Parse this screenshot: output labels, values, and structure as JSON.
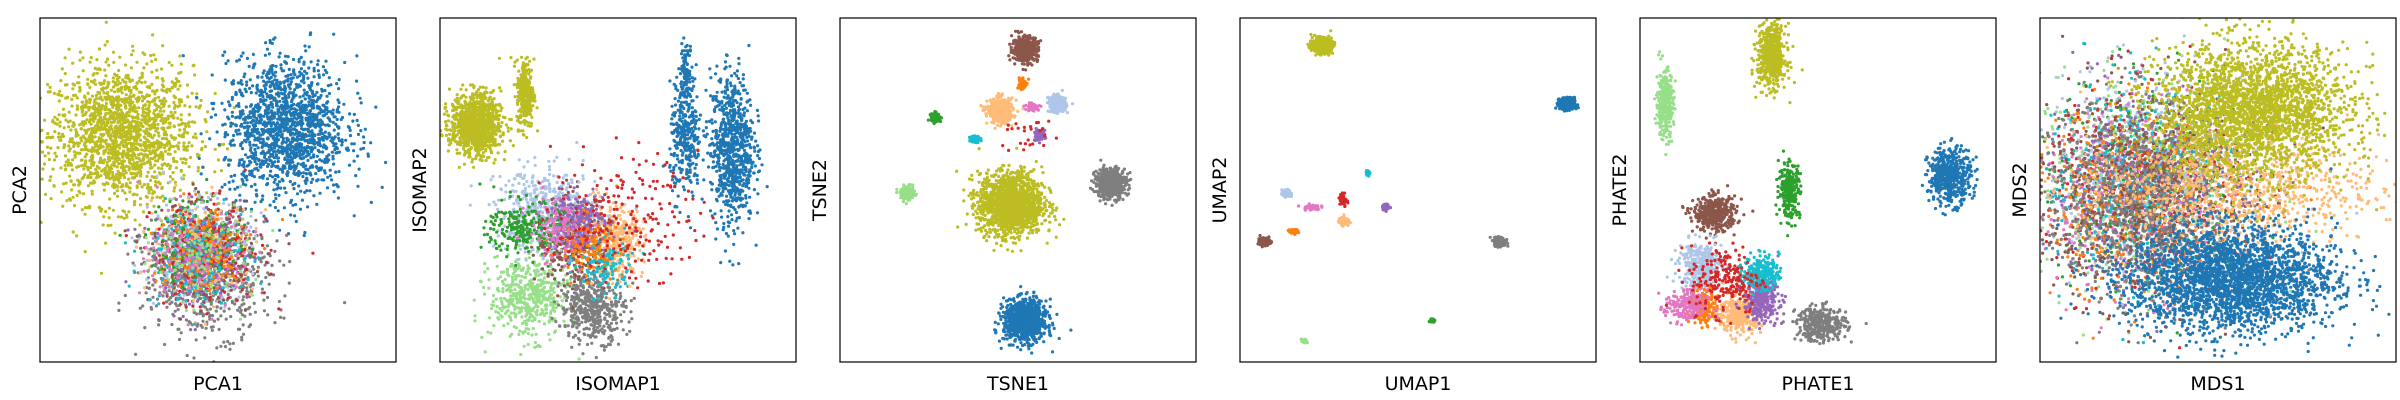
{
  "palette": {
    "blue": "#1f77b4",
    "orange": "#ff7f0e",
    "green": "#2ca02c",
    "red": "#d62728",
    "purple": "#9467bd",
    "brown": "#8c564b",
    "pink": "#e377c2",
    "gray": "#7f7f7f",
    "olive": "#bcbd22",
    "cyan": "#17becf",
    "light_blue": "#aec7e8",
    "light_orange": "#ffbb78",
    "light_green": "#98df8a"
  },
  "chart_data": [
    {
      "type": "scatter",
      "xlabel": "PCA1",
      "ylabel": "PCA2",
      "xlim": [
        0,
        10
      ],
      "ylim": [
        0,
        10
      ],
      "clusters": [
        {
          "color": "olive",
          "x": 2.3,
          "y": 6.6,
          "sx": 1.0,
          "sy": 1.0,
          "n": 1700
        },
        {
          "color": "blue",
          "x": 6.9,
          "y": 6.8,
          "sx": 0.85,
          "sy": 1.0,
          "n": 1500
        },
        {
          "color": "gray",
          "x": 4.7,
          "y": 2.5,
          "sx": 0.9,
          "sy": 0.85,
          "n": 700
        },
        {
          "color": "light_blue",
          "x": 4.4,
          "y": 3.4,
          "sx": 0.75,
          "sy": 0.7,
          "n": 350
        },
        {
          "color": "light_orange",
          "x": 4.6,
          "y": 3.3,
          "sx": 0.7,
          "sy": 0.65,
          "n": 300
        },
        {
          "color": "brown",
          "x": 4.5,
          "y": 3.2,
          "sx": 0.7,
          "sy": 0.7,
          "n": 250
        },
        {
          "color": "red",
          "x": 4.8,
          "y": 3.1,
          "sx": 0.8,
          "sy": 0.75,
          "n": 200
        },
        {
          "color": "green",
          "x": 4.4,
          "y": 3.5,
          "sx": 0.7,
          "sy": 0.7,
          "n": 150
        },
        {
          "color": "purple",
          "x": 4.6,
          "y": 3.0,
          "sx": 0.7,
          "sy": 0.7,
          "n": 150
        },
        {
          "color": "cyan",
          "x": 4.3,
          "y": 3.1,
          "sx": 0.7,
          "sy": 0.7,
          "n": 150
        },
        {
          "color": "orange",
          "x": 4.5,
          "y": 3.3,
          "sx": 0.7,
          "sy": 0.7,
          "n": 120
        },
        {
          "color": "pink",
          "x": 4.4,
          "y": 3.0,
          "sx": 0.7,
          "sy": 0.7,
          "n": 120
        },
        {
          "color": "light_green",
          "x": 4.6,
          "y": 3.2,
          "sx": 0.7,
          "sy": 0.7,
          "n": 100
        }
      ]
    },
    {
      "type": "scatter",
      "xlabel": "ISOMAP1",
      "ylabel": "ISOMAP2",
      "xlim": [
        0,
        10
      ],
      "ylim": [
        0,
        10
      ],
      "clusters": [
        {
          "color": "olive",
          "x": 1.0,
          "y": 6.9,
          "sx": 0.35,
          "sy": 0.45,
          "n": 1000
        },
        {
          "color": "olive",
          "x": 2.4,
          "y": 7.8,
          "sx": 0.12,
          "sy": 0.5,
          "n": 300
        },
        {
          "color": "blue",
          "x": 8.2,
          "y": 6.2,
          "sx": 0.3,
          "sy": 1.1,
          "n": 800
        },
        {
          "color": "blue",
          "x": 6.9,
          "y": 6.4,
          "sx": 0.22,
          "sy": 0.8,
          "n": 300
        },
        {
          "color": "blue",
          "x": 6.9,
          "y": 8.4,
          "sx": 0.1,
          "sy": 0.4,
          "n": 100
        },
        {
          "color": "light_green",
          "x": 2.5,
          "y": 1.9,
          "sx": 0.55,
          "sy": 0.6,
          "n": 500
        },
        {
          "color": "gray",
          "x": 4.3,
          "y": 1.6,
          "sx": 0.45,
          "sy": 0.5,
          "n": 450
        },
        {
          "color": "light_orange",
          "x": 4.9,
          "y": 3.5,
          "sx": 0.4,
          "sy": 0.5,
          "n": 400
        },
        {
          "color": "brown",
          "x": 3.7,
          "y": 3.6,
          "sx": 0.5,
          "sy": 0.6,
          "n": 400
        },
        {
          "color": "light_blue",
          "x": 3.0,
          "y": 4.4,
          "sx": 0.7,
          "sy": 0.6,
          "n": 450
        },
        {
          "color": "purple",
          "x": 3.8,
          "y": 4.1,
          "sx": 0.4,
          "sy": 0.4,
          "n": 250
        },
        {
          "color": "green",
          "x": 2.3,
          "y": 3.9,
          "sx": 0.5,
          "sy": 0.4,
          "n": 220
        },
        {
          "color": "cyan",
          "x": 4.6,
          "y": 2.8,
          "sx": 0.4,
          "sy": 0.4,
          "n": 120
        },
        {
          "color": "orange",
          "x": 4.2,
          "y": 3.4,
          "sx": 0.4,
          "sy": 0.4,
          "n": 120
        },
        {
          "color": "pink",
          "x": 3.3,
          "y": 3.8,
          "sx": 0.4,
          "sy": 0.5,
          "n": 120
        },
        {
          "color": "red",
          "x": 5.2,
          "y": 4.2,
          "sx": 1.0,
          "sy": 0.9,
          "n": 200
        }
      ]
    },
    {
      "type": "scatter",
      "xlabel": "TSNE1",
      "ylabel": "TSNE2",
      "xlim": [
        0,
        10
      ],
      "ylim": [
        0,
        10
      ],
      "clusters": [
        {
          "color": "olive",
          "x": 4.8,
          "y": 4.6,
          "sx": 0.45,
          "sy": 0.45,
          "n": 1600
        },
        {
          "color": "blue",
          "x": 5.2,
          "y": 1.2,
          "sx": 0.3,
          "sy": 0.3,
          "n": 900
        },
        {
          "color": "gray",
          "x": 7.6,
          "y": 5.2,
          "sx": 0.22,
          "sy": 0.22,
          "n": 500
        },
        {
          "color": "brown",
          "x": 5.2,
          "y": 9.1,
          "sx": 0.18,
          "sy": 0.18,
          "n": 400
        },
        {
          "color": "light_orange",
          "x": 4.5,
          "y": 7.3,
          "sx": 0.18,
          "sy": 0.18,
          "n": 350
        },
        {
          "color": "light_blue",
          "x": 6.1,
          "y": 7.5,
          "sx": 0.12,
          "sy": 0.12,
          "n": 250
        },
        {
          "color": "light_green",
          "x": 1.9,
          "y": 4.9,
          "sx": 0.1,
          "sy": 0.1,
          "n": 150
        },
        {
          "color": "green",
          "x": 2.7,
          "y": 7.1,
          "sx": 0.07,
          "sy": 0.07,
          "n": 100
        },
        {
          "color": "purple",
          "x": 5.6,
          "y": 6.6,
          "sx": 0.08,
          "sy": 0.08,
          "n": 80
        },
        {
          "color": "cyan",
          "x": 3.8,
          "y": 6.5,
          "sx": 0.06,
          "sy": 0.06,
          "n": 60
        },
        {
          "color": "orange",
          "x": 5.1,
          "y": 8.1,
          "sx": 0.06,
          "sy": 0.1,
          "n": 60
        },
        {
          "color": "pink",
          "x": 5.4,
          "y": 7.4,
          "sx": 0.12,
          "sy": 0.06,
          "n": 50
        },
        {
          "color": "red",
          "x": 5.3,
          "y": 6.6,
          "sx": 0.4,
          "sy": 0.3,
          "n": 25
        }
      ]
    },
    {
      "type": "scatter",
      "xlabel": "UMAP1",
      "ylabel": "UMAP2",
      "xlim": [
        0,
        10
      ],
      "ylim": [
        0,
        10
      ],
      "clusters": [
        {
          "color": "olive",
          "x": 2.3,
          "y": 9.2,
          "sx": 0.13,
          "sy": 0.1,
          "n": 700
        },
        {
          "color": "blue",
          "x": 9.2,
          "y": 7.5,
          "sx": 0.1,
          "sy": 0.08,
          "n": 600
        },
        {
          "color": "gray",
          "x": 7.3,
          "y": 3.5,
          "sx": 0.08,
          "sy": 0.06,
          "n": 300
        },
        {
          "color": "brown",
          "x": 0.7,
          "y": 3.5,
          "sx": 0.07,
          "sy": 0.05,
          "n": 200
        },
        {
          "color": "light_orange",
          "x": 2.9,
          "y": 4.1,
          "sx": 0.06,
          "sy": 0.05,
          "n": 150
        },
        {
          "color": "light_blue",
          "x": 1.3,
          "y": 4.9,
          "sx": 0.06,
          "sy": 0.05,
          "n": 120
        },
        {
          "color": "purple",
          "x": 4.1,
          "y": 4.5,
          "sx": 0.05,
          "sy": 0.04,
          "n": 80
        },
        {
          "color": "orange",
          "x": 1.5,
          "y": 3.8,
          "sx": 0.06,
          "sy": 0.03,
          "n": 60
        },
        {
          "color": "pink",
          "x": 2.0,
          "y": 4.5,
          "sx": 0.12,
          "sy": 0.04,
          "n": 60
        },
        {
          "color": "red",
          "x": 2.9,
          "y": 4.7,
          "sx": 0.05,
          "sy": 0.12,
          "n": 40
        },
        {
          "color": "cyan",
          "x": 3.6,
          "y": 5.5,
          "sx": 0.03,
          "sy": 0.03,
          "n": 40
        },
        {
          "color": "light_green",
          "x": 1.8,
          "y": 0.6,
          "sx": 0.04,
          "sy": 0.03,
          "n": 40
        },
        {
          "color": "green",
          "x": 5.4,
          "y": 1.2,
          "sx": 0.03,
          "sy": 0.03,
          "n": 30
        }
      ]
    },
    {
      "type": "scatter",
      "xlabel": "PHATE1",
      "ylabel": "PHATE2",
      "xlim": [
        0,
        10
      ],
      "ylim": [
        0,
        10
      ],
      "clusters": [
        {
          "color": "olive",
          "x": 3.7,
          "y": 8.9,
          "sx": 0.2,
          "sy": 0.45,
          "n": 600
        },
        {
          "color": "blue",
          "x": 8.7,
          "y": 5.4,
          "sx": 0.3,
          "sy": 0.4,
          "n": 500
        },
        {
          "color": "light_green",
          "x": 0.7,
          "y": 7.5,
          "sx": 0.12,
          "sy": 0.5,
          "n": 300
        },
        {
          "color": "green",
          "x": 4.2,
          "y": 5.0,
          "sx": 0.15,
          "sy": 0.4,
          "n": 250
        },
        {
          "color": "brown",
          "x": 2.1,
          "y": 4.3,
          "sx": 0.3,
          "sy": 0.25,
          "n": 400
        },
        {
          "color": "gray",
          "x": 5.1,
          "y": 1.1,
          "sx": 0.35,
          "sy": 0.25,
          "n": 350
        },
        {
          "color": "light_blue",
          "x": 1.7,
          "y": 2.8,
          "sx": 0.3,
          "sy": 0.35,
          "n": 350
        },
        {
          "color": "light_orange",
          "x": 2.8,
          "y": 1.4,
          "sx": 0.3,
          "sy": 0.3,
          "n": 350
        },
        {
          "color": "purple",
          "x": 3.4,
          "y": 1.8,
          "sx": 0.25,
          "sy": 0.3,
          "n": 300
        },
        {
          "color": "cyan",
          "x": 3.4,
          "y": 2.6,
          "sx": 0.25,
          "sy": 0.25,
          "n": 250
        },
        {
          "color": "orange",
          "x": 1.8,
          "y": 1.6,
          "sx": 0.2,
          "sy": 0.25,
          "n": 200
        },
        {
          "color": "pink",
          "x": 1.3,
          "y": 1.6,
          "sx": 0.3,
          "sy": 0.25,
          "n": 200
        },
        {
          "color": "red",
          "x": 2.4,
          "y": 2.4,
          "sx": 0.5,
          "sy": 0.5,
          "n": 200
        }
      ]
    },
    {
      "type": "scatter",
      "xlabel": "MDS1",
      "ylabel": "MDS2",
      "xlim": [
        0,
        10
      ],
      "ylim": [
        0,
        10
      ],
      "clusters": [
        {
          "color": "light_green",
          "x": 2.8,
          "y": 5.3,
          "sx": 1.5,
          "sy": 1.5,
          "n": 500
        },
        {
          "color": "green",
          "x": 2.9,
          "y": 5.4,
          "sx": 1.5,
          "sy": 1.5,
          "n": 300
        },
        {
          "color": "red",
          "x": 3.0,
          "y": 5.1,
          "sx": 1.5,
          "sy": 1.5,
          "n": 300
        },
        {
          "color": "light_blue",
          "x": 2.9,
          "y": 5.6,
          "sx": 1.4,
          "sy": 1.4,
          "n": 500
        },
        {
          "color": "pink",
          "x": 2.6,
          "y": 4.8,
          "sx": 1.4,
          "sy": 1.4,
          "n": 400
        },
        {
          "color": "purple",
          "x": 3.0,
          "y": 5.0,
          "sx": 1.4,
          "sy": 1.4,
          "n": 400
        },
        {
          "color": "cyan",
          "x": 2.8,
          "y": 5.3,
          "sx": 1.4,
          "sy": 1.4,
          "n": 400
        },
        {
          "color": "orange",
          "x": 2.6,
          "y": 4.6,
          "sx": 1.4,
          "sy": 1.4,
          "n": 400
        },
        {
          "color": "brown",
          "x": 3.0,
          "y": 5.0,
          "sx": 1.5,
          "sy": 1.5,
          "n": 800
        },
        {
          "color": "gray",
          "x": 3.0,
          "y": 4.7,
          "sx": 1.5,
          "sy": 1.5,
          "n": 900
        },
        {
          "color": "light_orange",
          "x": 5.3,
          "y": 5.0,
          "sx": 2.1,
          "sy": 0.8,
          "n": 900
        },
        {
          "color": "olive",
          "x": 6.0,
          "y": 7.3,
          "sx": 1.35,
          "sy": 0.95,
          "n": 2600
        },
        {
          "color": "blue",
          "x": 5.4,
          "y": 2.4,
          "sx": 1.45,
          "sy": 0.75,
          "n": 2600
        }
      ]
    }
  ]
}
